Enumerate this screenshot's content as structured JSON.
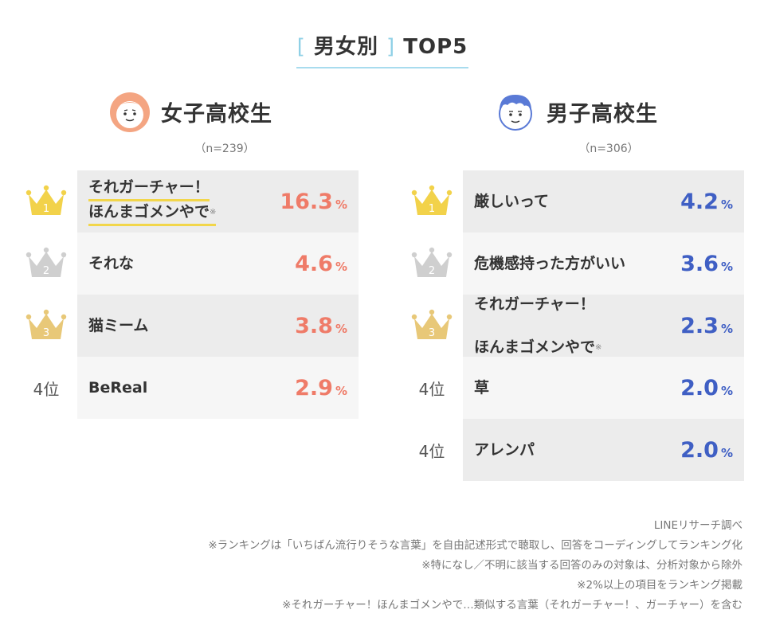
{
  "header": {
    "bracket_open": "[",
    "title_main": "男女別",
    "bracket_close": "]",
    "title_suffix": "TOP5"
  },
  "chart_data": [
    {
      "type": "table",
      "title": "女子高校生",
      "n_label": "（n=239）",
      "accent_color": "#ef7b68",
      "items": [
        {
          "rank": 1,
          "rank_label": "1",
          "lines": [
            "それガーチャー！",
            "ほんまゴメンやで"
          ],
          "note": "※",
          "value": 16.3,
          "value_text": "16.3",
          "unit": "%"
        },
        {
          "rank": 2,
          "rank_label": "2",
          "lines": [
            "それな"
          ],
          "note": "",
          "value": 4.6,
          "value_text": "4.6",
          "unit": "%"
        },
        {
          "rank": 3,
          "rank_label": "3",
          "lines": [
            "猫ミーム"
          ],
          "note": "",
          "value": 3.8,
          "value_text": "3.8",
          "unit": "%"
        },
        {
          "rank": 4,
          "rank_label": "4位",
          "lines": [
            "BeReal"
          ],
          "note": "",
          "value": 2.9,
          "value_text": "2.9",
          "unit": "%"
        }
      ]
    },
    {
      "type": "table",
      "title": "男子高校生",
      "n_label": "（n=306）",
      "accent_color": "#3f5fc4",
      "items": [
        {
          "rank": 1,
          "rank_label": "1",
          "lines": [
            "厳しいって"
          ],
          "note": "",
          "value": 4.2,
          "value_text": "4.2",
          "unit": "%"
        },
        {
          "rank": 2,
          "rank_label": "2",
          "lines": [
            "危機感持った方がいい"
          ],
          "note": "",
          "value": 3.6,
          "value_text": "3.6",
          "unit": "%"
        },
        {
          "rank": 3,
          "rank_label": "3",
          "lines": [
            "それガーチャー！",
            "ほんまゴメンやで"
          ],
          "note": "※",
          "value": 2.3,
          "value_text": "2.3",
          "unit": "%"
        },
        {
          "rank": 4,
          "rank_label": "4位",
          "lines": [
            "草"
          ],
          "note": "",
          "value": 2.0,
          "value_text": "2.0",
          "unit": "%"
        },
        {
          "rank": 4,
          "rank_label": "4位",
          "lines": [
            "アレンパ"
          ],
          "note": "",
          "value": 2.0,
          "value_text": "2.0",
          "unit": "%"
        }
      ]
    }
  ],
  "footer": {
    "lines": [
      "LINEリサーチ調べ",
      "※ランキングは「いちばん流行りそうな言葉」を自由記述形式で聴取し、回答をコーディングしてランキング化",
      "※特になし／不明に該当する回答のみの対象は、分析対象から除外",
      "※2%以上の項目をランキング掲載",
      "※それガーチャー！ほんまゴメンやで…類似する言葉（それガーチャー！、ガーチャー）を含む"
    ]
  },
  "colors": {
    "gold": "#f2d24a",
    "silver": "#cfcfcf",
    "bronze": "#e8c878",
    "title_bracket": "#8fd0e6",
    "highlight_underline": "#f2d64a"
  }
}
